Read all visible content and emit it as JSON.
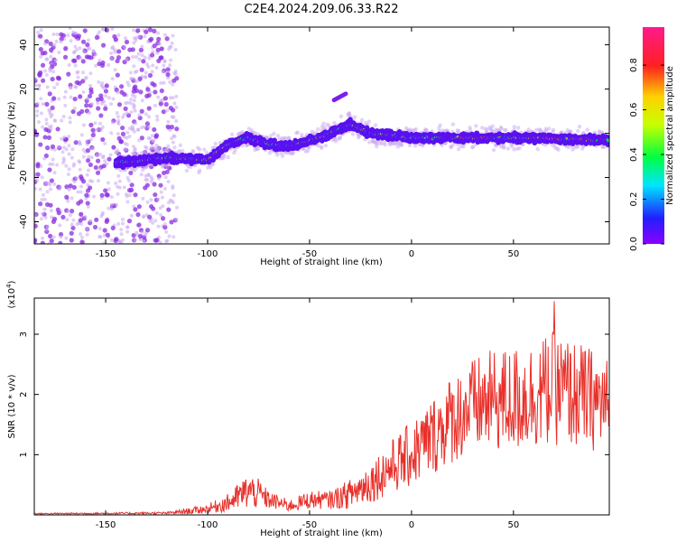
{
  "title": "C2E4.2024.209.06.33.R22",
  "colors": {
    "snr_line": "#e8302a",
    "spectrogram_low": "#8a2be2",
    "spectrogram_faint": "#c9a7f0"
  },
  "chart_data": [
    {
      "type": "heatmap",
      "name": "spectrogram",
      "xlabel": "Height of straight line (km)",
      "ylabel": "Frequency (Hz)",
      "xlim": [
        -185,
        97
      ],
      "ylim": [
        -50,
        48
      ],
      "xticks": [
        -150,
        -100,
        -50,
        0,
        50
      ],
      "yticks": [
        -40,
        -20,
        0,
        20,
        40
      ],
      "colorbar": {
        "label": "Normalized spectral amplitude",
        "range": [
          0.0,
          0.97
        ],
        "ticks": [
          "0.0",
          "0.2",
          "0.4",
          "0.6",
          "0.8"
        ],
        "colormap": "rainbow (violet→blue→cyan→green→yellow→red→magenta)"
      },
      "ridge": {
        "x": [
          -140,
          -120,
          -100,
          -90,
          -80,
          -70,
          -60,
          -45,
          -30,
          -20,
          0,
          20,
          50,
          97
        ],
        "frequency": [
          -13,
          -11,
          -12,
          -5,
          -2,
          -5,
          -6,
          -2,
          4,
          0,
          -2,
          -2,
          -2,
          -3
        ]
      },
      "noise_region_x": [
        -185,
        -115
      ],
      "branch_segment": {
        "x": [
          -38,
          -32
        ],
        "frequency": [
          15,
          18
        ]
      }
    },
    {
      "type": "line",
      "name": "snr",
      "xlabel": "Height of straight line (km)",
      "ylabel": "SNR (10 * v/v)",
      "multiplier_label": "(x10",
      "multiplier_exponent": "4",
      "multiplier_close": ")",
      "xlim": [
        -185,
        97
      ],
      "ylim": [
        0,
        3.6
      ],
      "xticks": [
        -150,
        -100,
        -50,
        0,
        50
      ],
      "yticks": [
        1,
        2,
        3
      ],
      "envelope": {
        "x": [
          -185,
          -120,
          -110,
          -100,
          -90,
          -80,
          -75,
          -70,
          -60,
          -50,
          -40,
          -30,
          -20,
          -10,
          0,
          10,
          20,
          30,
          40,
          50,
          60,
          70,
          80,
          90,
          97
        ],
        "mean": [
          0.02,
          0.03,
          0.06,
          0.1,
          0.2,
          0.4,
          0.35,
          0.25,
          0.15,
          0.25,
          0.25,
          0.35,
          0.55,
          0.8,
          1.0,
          1.3,
          1.6,
          1.8,
          1.9,
          1.9,
          2.0,
          2.1,
          2.0,
          1.9,
          1.8
        ],
        "spread": [
          0.01,
          0.02,
          0.05,
          0.08,
          0.15,
          0.3,
          0.25,
          0.15,
          0.1,
          0.15,
          0.15,
          0.25,
          0.35,
          0.45,
          0.55,
          0.65,
          0.75,
          0.8,
          0.85,
          0.9,
          0.9,
          0.95,
          0.9,
          0.85,
          0.8
        ]
      },
      "peak": {
        "x": 70,
        "y": 3.55
      }
    }
  ]
}
